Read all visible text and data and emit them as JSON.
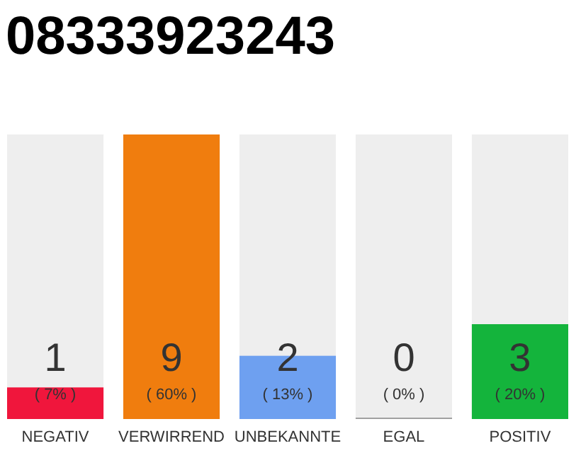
{
  "chart_data": {
    "type": "bar",
    "title": "08333923243",
    "categories": [
      "NEGATIV",
      "VERWIRREND",
      "UNBEKANNTE",
      "EGAL",
      "POSITIV"
    ],
    "values": [
      1,
      9,
      2,
      0,
      3
    ],
    "colors": [
      "#f0163c",
      "#f07d0e",
      "#6ea0f0",
      "#a0a0a0",
      "#14b43c"
    ],
    "value_labels": [
      "1\n( 7% )",
      "9\n( 60% )",
      "2\n( 13% )",
      "0\n( 0% )",
      "3\n( 20% )"
    ]
  }
}
